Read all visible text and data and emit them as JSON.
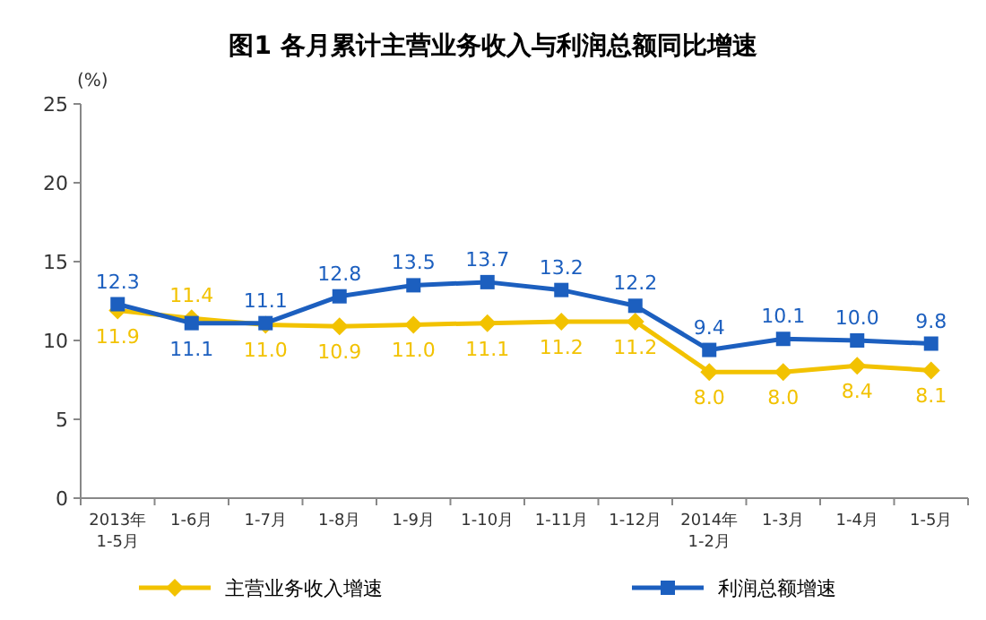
{
  "chart_data": {
    "type": "line",
    "title": "图1 各月累计主营业务收入与利润总额同比增速",
    "ylabel": "(%)",
    "categories": [
      "2013年\n1-5月",
      "1-6月",
      "1-7月",
      "1-8月",
      "1-9月",
      "1-10月",
      "1-11月",
      "1-12月",
      "2014年\n1-2月",
      "1-3月",
      "1-4月",
      "1-5月"
    ],
    "series": [
      {
        "name": "主营业务收入增速",
        "color": "#f2c200",
        "marker": "diamond",
        "values": [
          11.9,
          11.4,
          11.0,
          10.9,
          11.0,
          11.1,
          11.2,
          11.2,
          8.0,
          8.0,
          8.4,
          8.1
        ],
        "value_labels": [
          "11.9",
          "11.4",
          "11.0",
          "10.9",
          "11.0",
          "11.1",
          "11.2",
          "11.2",
          "8.0",
          "8.0",
          "8.4",
          "8.1"
        ]
      },
      {
        "name": "利润总额增速",
        "color": "#1c5fbf",
        "marker": "square",
        "values": [
          12.3,
          11.1,
          11.1,
          12.8,
          13.5,
          13.7,
          13.2,
          12.2,
          9.4,
          10.1,
          10.0,
          9.8
        ],
        "value_labels": [
          "12.3",
          "11.1",
          "11.1",
          "12.8",
          "13.5",
          "13.7",
          "13.2",
          "12.2",
          "9.4",
          "10.1",
          "10.0",
          "9.8"
        ]
      }
    ],
    "ylim": [
      0,
      25
    ],
    "yticks": [
      0,
      5,
      10,
      15,
      20,
      25
    ],
    "legend": "bottom",
    "grid": false,
    "line_style": "solid"
  }
}
